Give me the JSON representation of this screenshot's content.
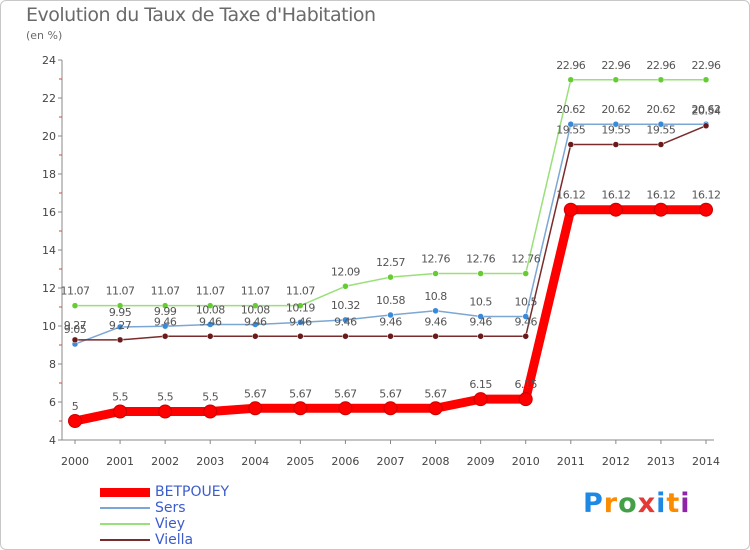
{
  "chart_data": {
    "type": "line",
    "title": "Evolution du Taux de Taxe d'Habitation",
    "subtitle": "(en %)",
    "x": [
      "2000",
      "2001",
      "2002",
      "2003",
      "2004",
      "2005",
      "2006",
      "2007",
      "2008",
      "2009",
      "2010",
      "2011",
      "2012",
      "2013",
      "2014"
    ],
    "ylim": [
      4,
      24
    ],
    "yticks": [
      4,
      6,
      8,
      10,
      12,
      14,
      16,
      18,
      20,
      22,
      24
    ],
    "grid": false,
    "legend_position": "bottom-left",
    "series": [
      {
        "name": "BETPOUEY",
        "color": "#ff0000",
        "marker_color": "#ff0000",
        "values": [
          5,
          5.5,
          5.5,
          5.5,
          5.67,
          5.67,
          5.67,
          5.67,
          5.67,
          6.15,
          6.15,
          16.12,
          16.12,
          16.12,
          16.12
        ],
        "labels": [
          "5",
          "5.5",
          "5.5",
          "5.5",
          "5.67",
          "5.67",
          "5.67",
          "5.67",
          "5.67",
          "6.15",
          "6.15",
          "16.12",
          "16.12",
          "16.12",
          "16.12"
        ]
      },
      {
        "name": "Sers",
        "color": "#7ba7d4",
        "marker_color": "#3a8ad8",
        "values": [
          9.05,
          9.95,
          9.99,
          10.08,
          10.08,
          10.19,
          10.32,
          10.58,
          10.8,
          10.5,
          10.5,
          20.62,
          20.62,
          20.62,
          20.62
        ],
        "labels": [
          "9.05",
          "9.95",
          "9.99",
          "10.08",
          "10.08",
          "10.19",
          "10.32",
          "10.58",
          "10.8",
          "10.5",
          "10.5",
          "20.62",
          "20.62",
          "20.62",
          "20.62"
        ]
      },
      {
        "name": "Viey",
        "color": "#99e07a",
        "marker_color": "#66cc33",
        "values": [
          11.07,
          11.07,
          11.07,
          11.07,
          11.07,
          11.07,
          12.09,
          12.57,
          12.76,
          12.76,
          12.76,
          22.96,
          22.96,
          22.96,
          22.96
        ],
        "labels": [
          "11.07",
          "11.07",
          "11.07",
          "11.07",
          "11.07",
          "11.07",
          "12.09",
          "12.57",
          "12.76",
          "12.76",
          "12.76",
          "22.96",
          "22.96",
          "22.96",
          "22.96"
        ]
      },
      {
        "name": "Viella",
        "color": "#7a2b2b",
        "marker_color": "#6b1a1a",
        "values": [
          9.27,
          9.27,
          9.46,
          9.46,
          9.46,
          9.46,
          9.46,
          9.46,
          9.46,
          9.46,
          9.46,
          19.55,
          19.55,
          19.55,
          20.54
        ],
        "labels": [
          "9.27",
          "9.27",
          "9.46",
          "9.46",
          "9.46",
          "9.46",
          "9.46",
          "9.46",
          "9.46",
          "9.46",
          "9.46",
          "19.55",
          "19.55",
          "19.55",
          "20.54"
        ]
      }
    ]
  },
  "brand": {
    "letters": [
      "P",
      "r",
      "o",
      "x",
      "i",
      "t",
      "i"
    ],
    "colors": [
      "#1e88e5",
      "#fb8c00",
      "#43a047",
      "#e53935",
      "#1e88e5",
      "#fb8c00",
      "#8e24aa"
    ]
  }
}
